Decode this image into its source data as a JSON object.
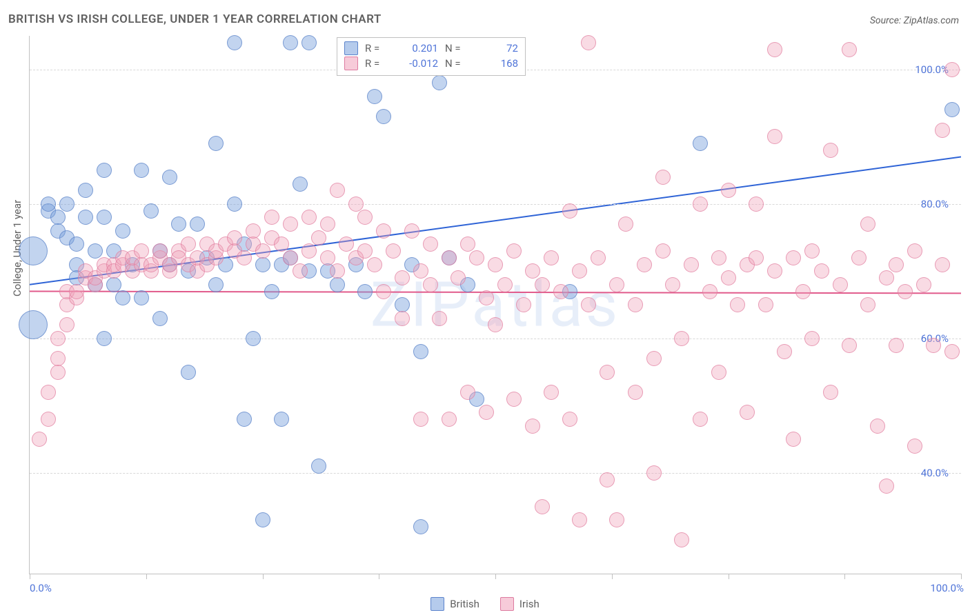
{
  "title": "BRITISH VS IRISH COLLEGE, UNDER 1 YEAR CORRELATION CHART",
  "source": "Source: ZipAtlas.com",
  "watermark": "ZIPatlas",
  "ylabel": "College, Under 1 year",
  "chart": {
    "type": "scatter",
    "xlim": [
      0,
      100
    ],
    "ylim": [
      25,
      105
    ],
    "ytick_labels": [
      "40.0%",
      "60.0%",
      "80.0%",
      "100.0%"
    ],
    "ytick_values": [
      40,
      60,
      80,
      100
    ],
    "xtick_values": [
      0,
      12.5,
      25,
      37.5,
      50,
      62.5,
      75,
      87.5,
      100
    ],
    "x_start_label": "0.0%",
    "x_end_label": "100.0%",
    "grid_color": "#d8d8d8",
    "background_color": "#ffffff",
    "axis_color": "#c0c0c0",
    "marker_radius": 10,
    "marker_radius_large": 20,
    "series": [
      {
        "name": "British",
        "class": "blue",
        "color_fill": "rgba(120,160,220,0.45)",
        "color_stroke": "#5b83cc",
        "trend": {
          "x1": 0,
          "y1": 68,
          "x2": 100,
          "y2": 87,
          "stroke": "#2e63d6",
          "width": 2
        },
        "R": "0.201",
        "N": "72",
        "points": [
          {
            "x": 0.4,
            "y": 73,
            "r": 20
          },
          {
            "x": 0.4,
            "y": 62,
            "r": 20
          },
          {
            "x": 2,
            "y": 79
          },
          {
            "x": 2,
            "y": 80
          },
          {
            "x": 3,
            "y": 78
          },
          {
            "x": 3,
            "y": 76
          },
          {
            "x": 4,
            "y": 80
          },
          {
            "x": 4,
            "y": 75
          },
          {
            "x": 5,
            "y": 74
          },
          {
            "x": 5,
            "y": 71
          },
          {
            "x": 5,
            "y": 69
          },
          {
            "x": 6,
            "y": 82
          },
          {
            "x": 6,
            "y": 78
          },
          {
            "x": 7,
            "y": 73
          },
          {
            "x": 7,
            "y": 68
          },
          {
            "x": 8,
            "y": 78
          },
          {
            "x": 8,
            "y": 60
          },
          {
            "x": 8,
            "y": 85
          },
          {
            "x": 9,
            "y": 73
          },
          {
            "x": 9,
            "y": 68
          },
          {
            "x": 10,
            "y": 76
          },
          {
            "x": 10,
            "y": 66
          },
          {
            "x": 11,
            "y": 71
          },
          {
            "x": 12,
            "y": 85
          },
          {
            "x": 12,
            "y": 66
          },
          {
            "x": 13,
            "y": 79
          },
          {
            "x": 14,
            "y": 73
          },
          {
            "x": 14,
            "y": 63
          },
          {
            "x": 15,
            "y": 84
          },
          {
            "x": 15,
            "y": 71
          },
          {
            "x": 16,
            "y": 77
          },
          {
            "x": 17,
            "y": 70
          },
          {
            "x": 17,
            "y": 55
          },
          {
            "x": 18,
            "y": 77
          },
          {
            "x": 19,
            "y": 72
          },
          {
            "x": 20,
            "y": 68
          },
          {
            "x": 20,
            "y": 89
          },
          {
            "x": 21,
            "y": 71
          },
          {
            "x": 22,
            "y": 80
          },
          {
            "x": 22,
            "y": 104
          },
          {
            "x": 23,
            "y": 74
          },
          {
            "x": 23,
            "y": 48
          },
          {
            "x": 24,
            "y": 60
          },
          {
            "x": 25,
            "y": 71
          },
          {
            "x": 25,
            "y": 33
          },
          {
            "x": 26,
            "y": 67
          },
          {
            "x": 27,
            "y": 71
          },
          {
            "x": 27,
            "y": 48
          },
          {
            "x": 28,
            "y": 104
          },
          {
            "x": 28,
            "y": 72
          },
          {
            "x": 29,
            "y": 83
          },
          {
            "x": 30,
            "y": 70
          },
          {
            "x": 30,
            "y": 104
          },
          {
            "x": 31,
            "y": 41
          },
          {
            "x": 32,
            "y": 70
          },
          {
            "x": 33,
            "y": 68
          },
          {
            "x": 35,
            "y": 71
          },
          {
            "x": 36,
            "y": 67
          },
          {
            "x": 37,
            "y": 96
          },
          {
            "x": 38,
            "y": 93
          },
          {
            "x": 40,
            "y": 65
          },
          {
            "x": 41,
            "y": 71
          },
          {
            "x": 42,
            "y": 58
          },
          {
            "x": 42,
            "y": 32
          },
          {
            "x": 44,
            "y": 98
          },
          {
            "x": 45,
            "y": 72
          },
          {
            "x": 47,
            "y": 68
          },
          {
            "x": 48,
            "y": 51
          },
          {
            "x": 58,
            "y": 67
          },
          {
            "x": 72,
            "y": 89
          },
          {
            "x": 99,
            "y": 94
          }
        ]
      },
      {
        "name": "Irish",
        "class": "pink",
        "color_fill": "rgba(240,160,185,0.38)",
        "color_stroke": "#dd7ba0",
        "trend": {
          "x1": 0,
          "y1": 67,
          "x2": 100,
          "y2": 66.7,
          "stroke": "#e15a8b",
          "width": 2
        },
        "R": "-0.012",
        "N": "168",
        "points": [
          {
            "x": 1,
            "y": 45
          },
          {
            "x": 2,
            "y": 48
          },
          {
            "x": 2,
            "y": 52
          },
          {
            "x": 3,
            "y": 55
          },
          {
            "x": 3,
            "y": 57
          },
          {
            "x": 3,
            "y": 60
          },
          {
            "x": 4,
            "y": 62
          },
          {
            "x": 4,
            "y": 65
          },
          {
            "x": 4,
            "y": 67
          },
          {
            "x": 5,
            "y": 66
          },
          {
            "x": 5,
            "y": 67
          },
          {
            "x": 6,
            "y": 69
          },
          {
            "x": 6,
            "y": 70
          },
          {
            "x": 7,
            "y": 68
          },
          {
            "x": 7,
            "y": 69
          },
          {
            "x": 8,
            "y": 70
          },
          {
            "x": 8,
            "y": 71
          },
          {
            "x": 9,
            "y": 71
          },
          {
            "x": 9,
            "y": 70
          },
          {
            "x": 10,
            "y": 71
          },
          {
            "x": 10,
            "y": 72
          },
          {
            "x": 11,
            "y": 70
          },
          {
            "x": 11,
            "y": 72
          },
          {
            "x": 12,
            "y": 71
          },
          {
            "x": 12,
            "y": 73
          },
          {
            "x": 13,
            "y": 70
          },
          {
            "x": 13,
            "y": 71
          },
          {
            "x": 14,
            "y": 72
          },
          {
            "x": 14,
            "y": 73
          },
          {
            "x": 15,
            "y": 70
          },
          {
            "x": 15,
            "y": 71
          },
          {
            "x": 16,
            "y": 73
          },
          {
            "x": 16,
            "y": 72
          },
          {
            "x": 17,
            "y": 71
          },
          {
            "x": 17,
            "y": 74
          },
          {
            "x": 18,
            "y": 70
          },
          {
            "x": 18,
            "y": 72
          },
          {
            "x": 19,
            "y": 71
          },
          {
            "x": 19,
            "y": 74
          },
          {
            "x": 20,
            "y": 72
          },
          {
            "x": 20,
            "y": 73
          },
          {
            "x": 21,
            "y": 74
          },
          {
            "x": 22,
            "y": 73
          },
          {
            "x": 22,
            "y": 75
          },
          {
            "x": 23,
            "y": 72
          },
          {
            "x": 24,
            "y": 74
          },
          {
            "x": 24,
            "y": 76
          },
          {
            "x": 25,
            "y": 73
          },
          {
            "x": 26,
            "y": 75
          },
          {
            "x": 26,
            "y": 78
          },
          {
            "x": 27,
            "y": 74
          },
          {
            "x": 28,
            "y": 77
          },
          {
            "x": 28,
            "y": 72
          },
          {
            "x": 29,
            "y": 70
          },
          {
            "x": 30,
            "y": 78
          },
          {
            "x": 30,
            "y": 73
          },
          {
            "x": 31,
            "y": 75
          },
          {
            "x": 32,
            "y": 72
          },
          {
            "x": 32,
            "y": 77
          },
          {
            "x": 33,
            "y": 70
          },
          {
            "x": 33,
            "y": 82
          },
          {
            "x": 34,
            "y": 74
          },
          {
            "x": 35,
            "y": 80
          },
          {
            "x": 35,
            "y": 72
          },
          {
            "x": 36,
            "y": 78
          },
          {
            "x": 36,
            "y": 73
          },
          {
            "x": 37,
            "y": 71
          },
          {
            "x": 38,
            "y": 76
          },
          {
            "x": 38,
            "y": 67
          },
          {
            "x": 39,
            "y": 73
          },
          {
            "x": 40,
            "y": 69
          },
          {
            "x": 40,
            "y": 63
          },
          {
            "x": 41,
            "y": 76
          },
          {
            "x": 42,
            "y": 70
          },
          {
            "x": 42,
            "y": 48
          },
          {
            "x": 43,
            "y": 68
          },
          {
            "x": 43,
            "y": 74
          },
          {
            "x": 44,
            "y": 63
          },
          {
            "x": 45,
            "y": 72
          },
          {
            "x": 45,
            "y": 48
          },
          {
            "x": 46,
            "y": 69
          },
          {
            "x": 47,
            "y": 74
          },
          {
            "x": 47,
            "y": 52
          },
          {
            "x": 48,
            "y": 72
          },
          {
            "x": 49,
            "y": 66
          },
          {
            "x": 49,
            "y": 49
          },
          {
            "x": 50,
            "y": 71
          },
          {
            "x": 50,
            "y": 62
          },
          {
            "x": 51,
            "y": 68
          },
          {
            "x": 52,
            "y": 51
          },
          {
            "x": 52,
            "y": 73
          },
          {
            "x": 53,
            "y": 65
          },
          {
            "x": 54,
            "y": 70
          },
          {
            "x": 54,
            "y": 47
          },
          {
            "x": 55,
            "y": 68
          },
          {
            "x": 55,
            "y": 35
          },
          {
            "x": 56,
            "y": 72
          },
          {
            "x": 56,
            "y": 52
          },
          {
            "x": 57,
            "y": 67
          },
          {
            "x": 58,
            "y": 79
          },
          {
            "x": 58,
            "y": 48
          },
          {
            "x": 59,
            "y": 70
          },
          {
            "x": 59,
            "y": 33
          },
          {
            "x": 60,
            "y": 65
          },
          {
            "x": 60,
            "y": 104
          },
          {
            "x": 61,
            "y": 72
          },
          {
            "x": 62,
            "y": 55
          },
          {
            "x": 62,
            "y": 39
          },
          {
            "x": 63,
            "y": 68
          },
          {
            "x": 63,
            "y": 33
          },
          {
            "x": 64,
            "y": 77
          },
          {
            "x": 65,
            "y": 65
          },
          {
            "x": 65,
            "y": 52
          },
          {
            "x": 66,
            "y": 71
          },
          {
            "x": 67,
            "y": 57
          },
          {
            "x": 67,
            "y": 40
          },
          {
            "x": 68,
            "y": 73
          },
          {
            "x": 68,
            "y": 84
          },
          {
            "x": 69,
            "y": 68
          },
          {
            "x": 70,
            "y": 60
          },
          {
            "x": 70,
            "y": 30
          },
          {
            "x": 71,
            "y": 71
          },
          {
            "x": 72,
            "y": 80
          },
          {
            "x": 72,
            "y": 48
          },
          {
            "x": 73,
            "y": 67
          },
          {
            "x": 74,
            "y": 72
          },
          {
            "x": 74,
            "y": 55
          },
          {
            "x": 75,
            "y": 69
          },
          {
            "x": 75,
            "y": 82
          },
          {
            "x": 76,
            "y": 65
          },
          {
            "x": 77,
            "y": 71
          },
          {
            "x": 77,
            "y": 49
          },
          {
            "x": 78,
            "y": 72
          },
          {
            "x": 78,
            "y": 80
          },
          {
            "x": 79,
            "y": 65
          },
          {
            "x": 80,
            "y": 70
          },
          {
            "x": 80,
            "y": 90
          },
          {
            "x": 80,
            "y": 103
          },
          {
            "x": 81,
            "y": 58
          },
          {
            "x": 82,
            "y": 72
          },
          {
            "x": 82,
            "y": 45
          },
          {
            "x": 83,
            "y": 67
          },
          {
            "x": 84,
            "y": 73
          },
          {
            "x": 84,
            "y": 60
          },
          {
            "x": 85,
            "y": 70
          },
          {
            "x": 86,
            "y": 88
          },
          {
            "x": 86,
            "y": 52
          },
          {
            "x": 87,
            "y": 68
          },
          {
            "x": 88,
            "y": 59
          },
          {
            "x": 88,
            "y": 103
          },
          {
            "x": 89,
            "y": 72
          },
          {
            "x": 90,
            "y": 65
          },
          {
            "x": 90,
            "y": 77
          },
          {
            "x": 91,
            "y": 47
          },
          {
            "x": 92,
            "y": 69
          },
          {
            "x": 92,
            "y": 38
          },
          {
            "x": 93,
            "y": 71
          },
          {
            "x": 93,
            "y": 59
          },
          {
            "x": 94,
            "y": 67
          },
          {
            "x": 95,
            "y": 73
          },
          {
            "x": 95,
            "y": 44
          },
          {
            "x": 96,
            "y": 68
          },
          {
            "x": 97,
            "y": 59
          },
          {
            "x": 98,
            "y": 91
          },
          {
            "x": 98,
            "y": 71
          },
          {
            "x": 99,
            "y": 100
          },
          {
            "x": 99,
            "y": 58
          }
        ]
      }
    ]
  },
  "legend_bottom": [
    {
      "label": "British",
      "class": "blue"
    },
    {
      "label": "Irish",
      "class": "pink"
    }
  ]
}
